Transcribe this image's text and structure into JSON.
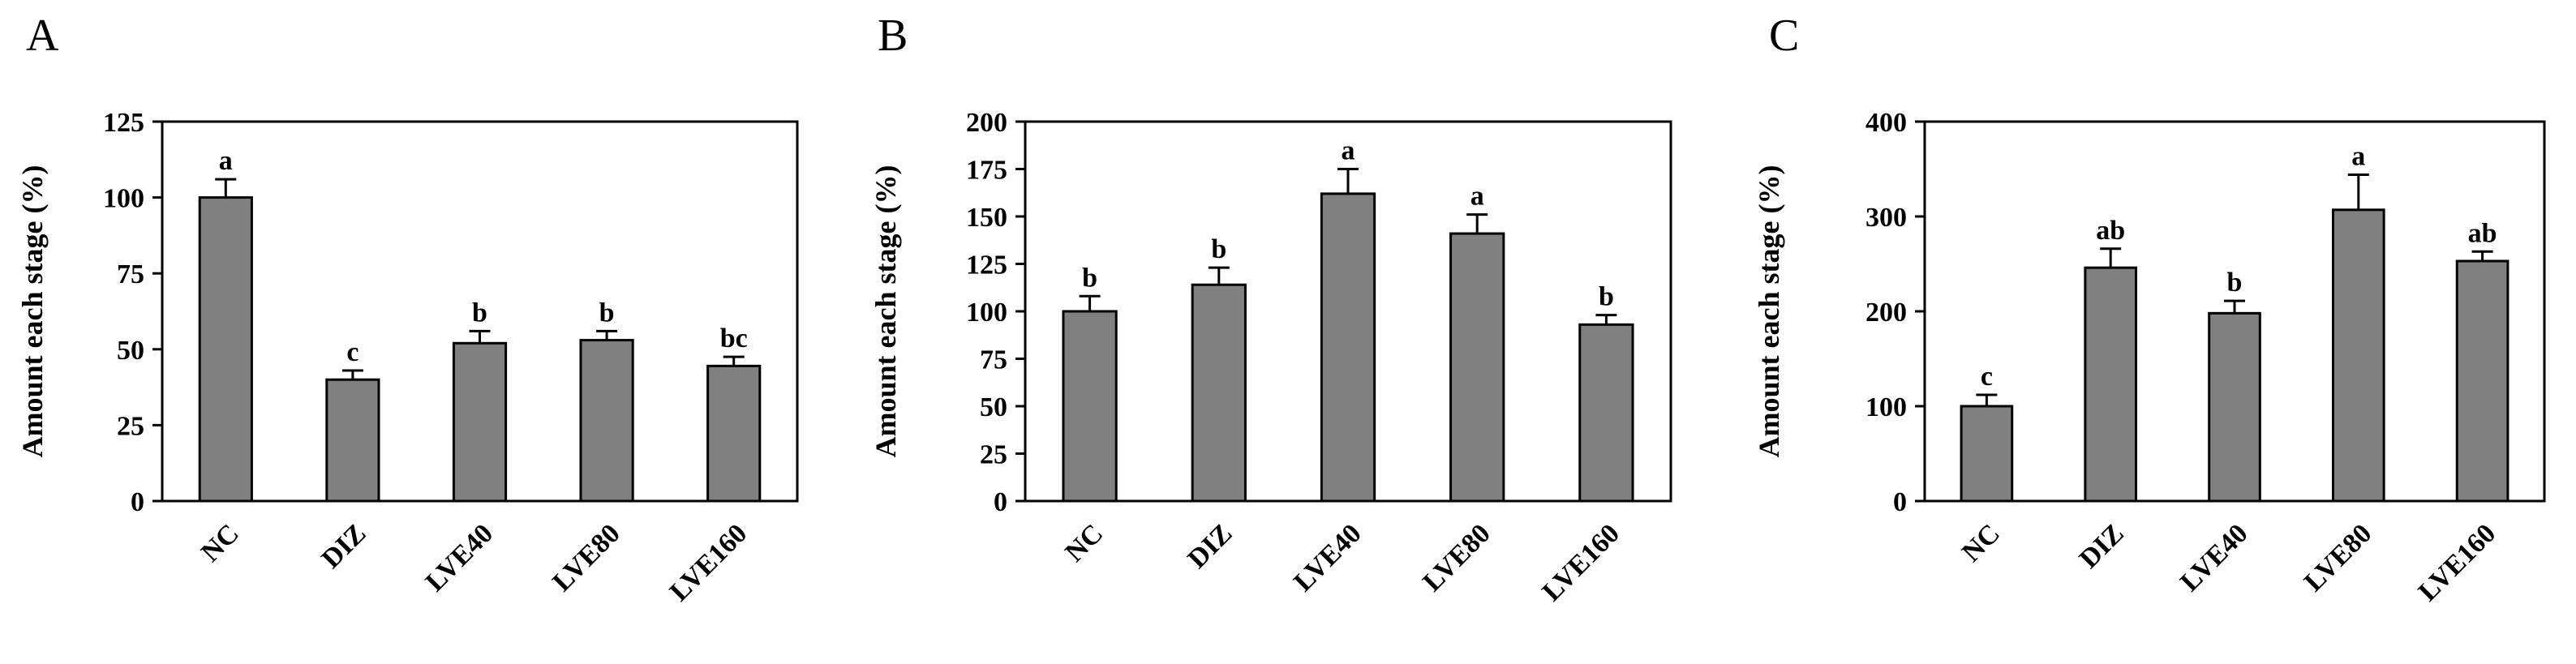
{
  "chart_data": [
    {
      "type": "bar",
      "panel": "A",
      "ylabel": "Amount each stage (%)",
      "ylim": [
        0,
        125
      ],
      "yticks": [
        "0",
        "25",
        "50",
        "75",
        "100",
        "125"
      ],
      "categories": [
        "NC",
        "DIZ",
        "LVE40",
        "LVE80",
        "LVE160"
      ],
      "values": [
        100,
        40,
        52,
        53,
        44.5
      ],
      "errors": [
        6,
        3,
        4,
        3,
        3
      ],
      "labels": [
        "a",
        "c",
        "b",
        "b",
        "bc"
      ],
      "bar_color": "#808080"
    },
    {
      "type": "bar",
      "panel": "B",
      "ylabel": "Amount each stage (%)",
      "ylim": [
        0,
        200
      ],
      "yticks": [
        "0",
        "25",
        "50",
        "75",
        "100",
        "125",
        "150",
        "175",
        "200"
      ],
      "categories": [
        "NC",
        "DIZ",
        "LVE40",
        "LVE80",
        "LVE160"
      ],
      "values": [
        100,
        114,
        162,
        141,
        93
      ],
      "errors": [
        8,
        9,
        13,
        10,
        5
      ],
      "labels": [
        "b",
        "b",
        "a",
        "a",
        "b"
      ],
      "bar_color": "#808080"
    },
    {
      "type": "bar",
      "panel": "C",
      "ylabel": "Amount each stage (%)",
      "ylim": [
        0,
        400
      ],
      "yticks": [
        "0",
        "100",
        "200",
        "300",
        "400"
      ],
      "categories": [
        "NC",
        "DIZ",
        "LVE40",
        "LVE80",
        "LVE160"
      ],
      "values": [
        100,
        246,
        198,
        307,
        253
      ],
      "errors": [
        12,
        20,
        13,
        37,
        10
      ],
      "labels": [
        "c",
        "ab",
        "b",
        "a",
        "ab"
      ],
      "bar_color": "#808080"
    }
  ]
}
